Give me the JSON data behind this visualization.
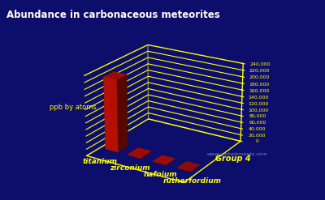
{
  "title": "Abundance in carbonaceous meteorites",
  "ylabel": "ppb by atoms",
  "group_label": "Group 4",
  "watermark": "www.webelements.com",
  "elements": [
    "titanium",
    "zirconium",
    "hafnium",
    "rutherfordium"
  ],
  "values": [
    220000,
    3900,
    154,
    0
  ],
  "ylim": [
    0,
    240000
  ],
  "yticks": [
    0,
    20000,
    40000,
    60000,
    80000,
    100000,
    120000,
    140000,
    160000,
    180000,
    200000,
    220000,
    240000
  ],
  "ytick_labels": [
    "0",
    "20,000",
    "40,000",
    "60,000",
    "80,000",
    "100,000",
    "120,000",
    "140,000",
    "160,000",
    "180,000",
    "200,000",
    "220,000",
    "240,000"
  ],
  "background_color": "#0d0d6b",
  "bar_color": "#cc1100",
  "bar_color_bright": "#ff2200",
  "grid_color": "#ffff00",
  "title_color": "#ffffff",
  "label_color": "#ffff00",
  "axis_label_color": "#ffff00",
  "tick_label_color": "#ffff00",
  "watermark_color": "#7799cc",
  "group_label_color": "#ffff00"
}
